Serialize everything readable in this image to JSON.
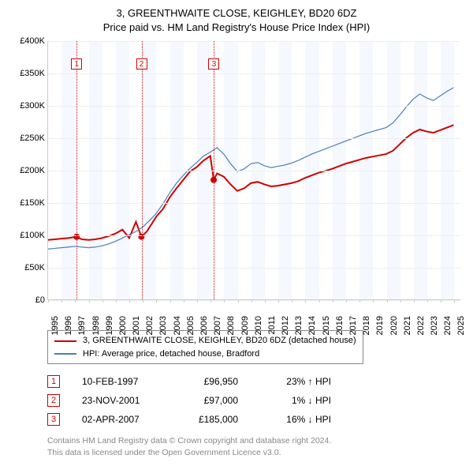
{
  "title_line1": "3, GREENTHWAITE CLOSE, KEIGHLEY, BD20 6DZ",
  "title_line2": "Price paid vs. HM Land Registry's House Price Index (HPI)",
  "chart": {
    "type": "line",
    "x_start": 1995,
    "x_end": 2025.5,
    "xticks": [
      1995,
      1996,
      1997,
      1998,
      1999,
      2000,
      2001,
      2002,
      2003,
      2004,
      2005,
      2006,
      2007,
      2008,
      2009,
      2010,
      2011,
      2012,
      2013,
      2014,
      2015,
      2016,
      2017,
      2018,
      2019,
      2020,
      2021,
      2022,
      2023,
      2024,
      2025
    ],
    "ylim": [
      0,
      400000
    ],
    "ytick_step": 50000,
    "yticks": [
      {
        "v": 0,
        "label": "£0"
      },
      {
        "v": 50000,
        "label": "£50K"
      },
      {
        "v": 100000,
        "label": "£100K"
      },
      {
        "v": 150000,
        "label": "£150K"
      },
      {
        "v": 200000,
        "label": "£200K"
      },
      {
        "v": 250000,
        "label": "£250K"
      },
      {
        "v": 300000,
        "label": "£300K"
      },
      {
        "v": 350000,
        "label": "£350K"
      },
      {
        "v": 400000,
        "label": "£400K"
      }
    ],
    "grid_color": "#eeeeee",
    "alt_band_color": "#f5f8ff",
    "background_color": "#ffffff",
    "axis_color": "#cccccc",
    "label_fontsize": 11,
    "series": [
      {
        "name": "property",
        "label": "3, GREENTHWAITE CLOSE, KEIGHLEY, BD20 6DZ (detached house)",
        "color": "#d00000",
        "line_width": 2,
        "data": [
          [
            1995.0,
            92000
          ],
          [
            1995.5,
            93000
          ],
          [
            1996.0,
            94000
          ],
          [
            1996.5,
            95000
          ],
          [
            1997.1,
            96950
          ],
          [
            1997.5,
            93000
          ],
          [
            1998.0,
            92000
          ],
          [
            1998.5,
            93000
          ],
          [
            1999.0,
            95000
          ],
          [
            1999.5,
            98000
          ],
          [
            2000.0,
            102000
          ],
          [
            2000.5,
            108000
          ],
          [
            2001.0,
            95000
          ],
          [
            2001.5,
            120000
          ],
          [
            2001.9,
            97000
          ],
          [
            2002.3,
            105000
          ],
          [
            2002.7,
            118000
          ],
          [
            2003.0,
            128000
          ],
          [
            2003.5,
            140000
          ],
          [
            2004.0,
            158000
          ],
          [
            2004.5,
            172000
          ],
          [
            2005.0,
            185000
          ],
          [
            2005.5,
            198000
          ],
          [
            2006.0,
            205000
          ],
          [
            2006.5,
            215000
          ],
          [
            2007.0,
            222000
          ],
          [
            2007.25,
            185000
          ],
          [
            2007.5,
            195000
          ],
          [
            2008.0,
            190000
          ],
          [
            2008.5,
            178000
          ],
          [
            2009.0,
            168000
          ],
          [
            2009.5,
            172000
          ],
          [
            2010.0,
            180000
          ],
          [
            2010.5,
            182000
          ],
          [
            2011.0,
            178000
          ],
          [
            2011.5,
            175000
          ],
          [
            2012.0,
            176000
          ],
          [
            2012.5,
            178000
          ],
          [
            2013.0,
            180000
          ],
          [
            2013.5,
            183000
          ],
          [
            2014.0,
            188000
          ],
          [
            2014.5,
            192000
          ],
          [
            2015.0,
            196000
          ],
          [
            2015.5,
            199000
          ],
          [
            2016.0,
            202000
          ],
          [
            2016.5,
            206000
          ],
          [
            2017.0,
            210000
          ],
          [
            2017.5,
            213000
          ],
          [
            2018.0,
            216000
          ],
          [
            2018.5,
            219000
          ],
          [
            2019.0,
            221000
          ],
          [
            2019.5,
            223000
          ],
          [
            2020.0,
            225000
          ],
          [
            2020.5,
            230000
          ],
          [
            2021.0,
            240000
          ],
          [
            2021.5,
            250000
          ],
          [
            2022.0,
            258000
          ],
          [
            2022.5,
            263000
          ],
          [
            2023.0,
            260000
          ],
          [
            2023.5,
            258000
          ],
          [
            2024.0,
            262000
          ],
          [
            2024.5,
            266000
          ],
          [
            2025.0,
            270000
          ]
        ]
      },
      {
        "name": "hpi",
        "label": "HPI: Average price, detached house, Bradford",
        "color": "#4a7ebb",
        "line_width": 1.2,
        "data": [
          [
            1995.0,
            78000
          ],
          [
            1995.5,
            79000
          ],
          [
            1996.0,
            80000
          ],
          [
            1996.5,
            81000
          ],
          [
            1997.0,
            82000
          ],
          [
            1997.5,
            81000
          ],
          [
            1998.0,
            80000
          ],
          [
            1998.5,
            81000
          ],
          [
            1999.0,
            83000
          ],
          [
            1999.5,
            86000
          ],
          [
            2000.0,
            90000
          ],
          [
            2000.5,
            95000
          ],
          [
            2001.0,
            100000
          ],
          [
            2001.5,
            105000
          ],
          [
            2002.0,
            112000
          ],
          [
            2002.5,
            122000
          ],
          [
            2003.0,
            133000
          ],
          [
            2003.5,
            148000
          ],
          [
            2004.0,
            165000
          ],
          [
            2004.5,
            180000
          ],
          [
            2005.0,
            192000
          ],
          [
            2005.5,
            203000
          ],
          [
            2006.0,
            212000
          ],
          [
            2006.5,
            222000
          ],
          [
            2007.0,
            228000
          ],
          [
            2007.5,
            235000
          ],
          [
            2008.0,
            225000
          ],
          [
            2008.5,
            210000
          ],
          [
            2009.0,
            198000
          ],
          [
            2009.5,
            202000
          ],
          [
            2010.0,
            210000
          ],
          [
            2010.5,
            212000
          ],
          [
            2011.0,
            207000
          ],
          [
            2011.5,
            204000
          ],
          [
            2012.0,
            206000
          ],
          [
            2012.5,
            208000
          ],
          [
            2013.0,
            211000
          ],
          [
            2013.5,
            215000
          ],
          [
            2014.0,
            220000
          ],
          [
            2014.5,
            225000
          ],
          [
            2015.0,
            229000
          ],
          [
            2015.5,
            233000
          ],
          [
            2016.0,
            237000
          ],
          [
            2016.5,
            241000
          ],
          [
            2017.0,
            245000
          ],
          [
            2017.5,
            249000
          ],
          [
            2018.0,
            253000
          ],
          [
            2018.5,
            257000
          ],
          [
            2019.0,
            260000
          ],
          [
            2019.5,
            263000
          ],
          [
            2020.0,
            266000
          ],
          [
            2020.5,
            273000
          ],
          [
            2021.0,
            285000
          ],
          [
            2021.5,
            298000
          ],
          [
            2022.0,
            310000
          ],
          [
            2022.5,
            318000
          ],
          [
            2023.0,
            312000
          ],
          [
            2023.5,
            308000
          ],
          [
            2024.0,
            315000
          ],
          [
            2024.5,
            322000
          ],
          [
            2025.0,
            328000
          ]
        ]
      }
    ],
    "sale_points": [
      {
        "x": 1997.11,
        "y": 96950
      },
      {
        "x": 2001.9,
        "y": 97000
      },
      {
        "x": 2007.25,
        "y": 185000
      }
    ],
    "markers": [
      {
        "n": "1",
        "x": 1997.11,
        "box_top": 22
      },
      {
        "n": "2",
        "x": 2001.9,
        "box_top": 22
      },
      {
        "n": "3",
        "x": 2007.25,
        "box_top": 22
      }
    ]
  },
  "legend": {
    "items": [
      {
        "color": "#d00000",
        "label": "3, GREENTHWAITE CLOSE, KEIGHLEY, BD20 6DZ (detached house)"
      },
      {
        "color": "#4a7ebb",
        "label": "HPI: Average price, detached house, Bradford"
      }
    ]
  },
  "transactions": [
    {
      "n": "1",
      "date": "10-FEB-1997",
      "price": "£96,950",
      "delta": "23% ↑ HPI",
      "arrow_color": "#000"
    },
    {
      "n": "2",
      "date": "23-NOV-2001",
      "price": "£97,000",
      "delta": "1% ↓ HPI",
      "arrow_color": "#000"
    },
    {
      "n": "3",
      "date": "02-APR-2007",
      "price": "£185,000",
      "delta": "16% ↓ HPI",
      "arrow_color": "#000"
    }
  ],
  "footnote_line1": "Contains HM Land Registry data © Crown copyright and database right 2024.",
  "footnote_line2": "This data is licensed under the Open Government Licence v3.0."
}
